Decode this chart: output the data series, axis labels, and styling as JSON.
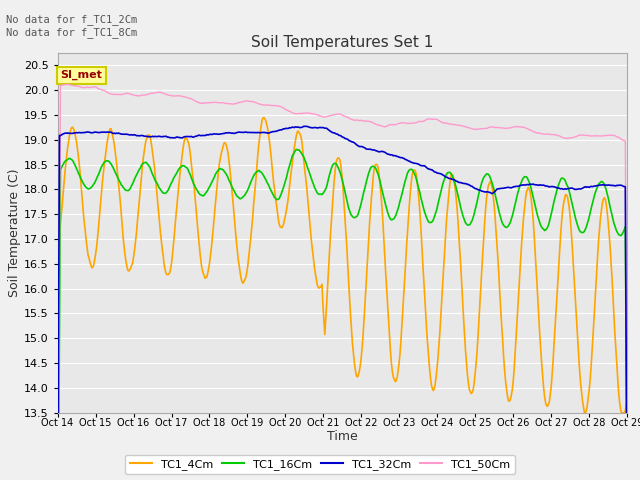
{
  "title": "Soil Temperatures Set 1",
  "xlabel": "Time",
  "ylabel": "Soil Temperature (C)",
  "ylim": [
    13.5,
    20.75
  ],
  "yticks": [
    13.5,
    14.0,
    14.5,
    15.0,
    15.5,
    16.0,
    16.5,
    17.0,
    17.5,
    18.0,
    18.5,
    19.0,
    19.5,
    20.0,
    20.5
  ],
  "xtick_labels": [
    "Oct 14",
    "Oct 15",
    "Oct 16",
    "Oct 17",
    "Oct 18",
    "Oct 19",
    "Oct 20",
    "Oct 21",
    "Oct 22",
    "Oct 23",
    "Oct 24",
    "Oct 25",
    "Oct 26",
    "Oct 27",
    "Oct 28",
    "Oct 29"
  ],
  "colors": {
    "TC1_4Cm": "#FFA500",
    "TC1_16Cm": "#00CC00",
    "TC1_32Cm": "#0000CC",
    "TC1_50Cm": "#FF99CC"
  },
  "fig_bg_color": "#F0F0F0",
  "plot_bg_color": "#E8E8E8",
  "grid_color": "#FFFFFF",
  "annotation_text": "No data for f_TC1_2Cm\nNo data for f_TC1_8Cm",
  "legend_label": "SI_met",
  "n_points": 600
}
